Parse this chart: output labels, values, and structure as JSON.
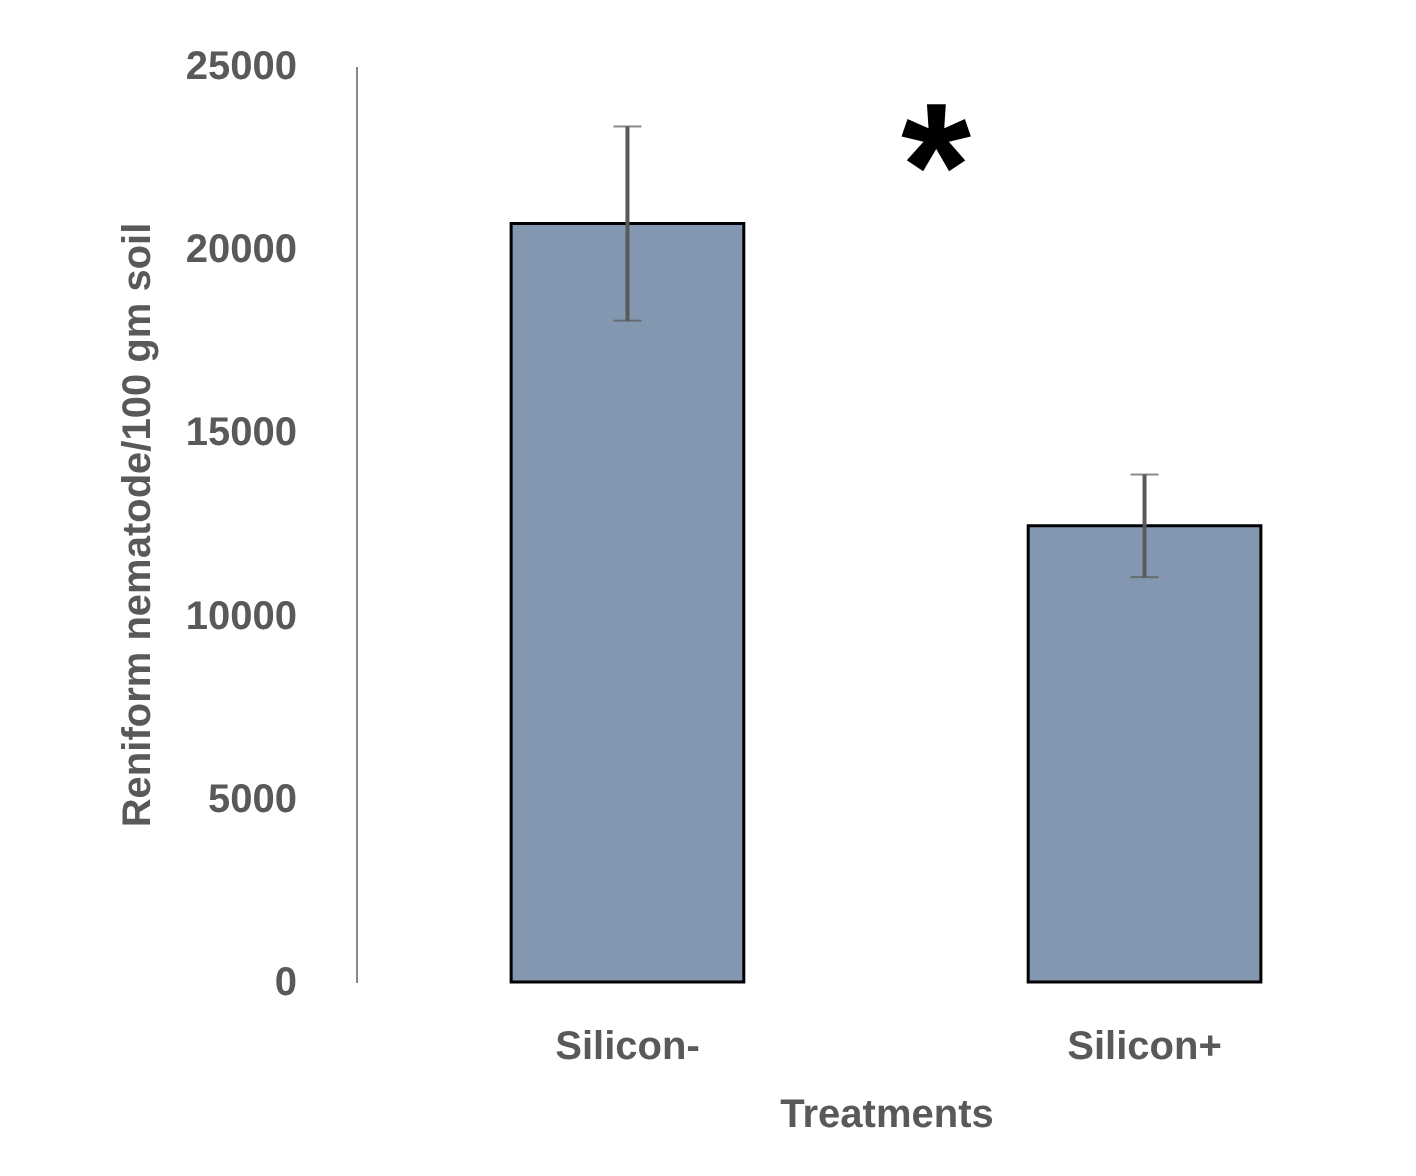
{
  "chart_data": {
    "type": "bar",
    "xlabel": "Treatments",
    "ylabel": "Reniform nematode/100 gm soil",
    "categories": [
      "Silicon-",
      "Silicon+"
    ],
    "values": [
      20700,
      12450
    ],
    "errors": [
      2650,
      1400
    ],
    "color": "#8497b0",
    "ylim": [
      0,
      25000
    ],
    "yticks": [
      0,
      5000,
      10000,
      15000,
      20000,
      25000
    ],
    "grid": false,
    "annotations": [
      "*"
    ]
  }
}
